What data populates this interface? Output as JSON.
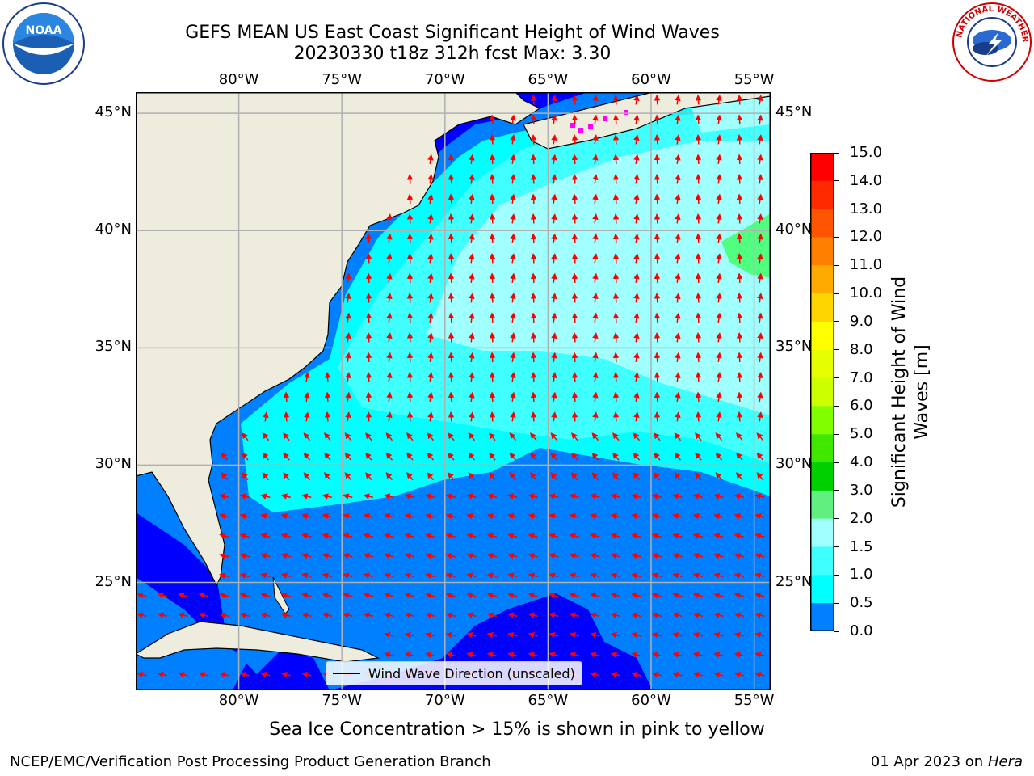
{
  "header": {
    "title_line1": "GEFS MEAN US East Coast Significant Height of Wind Waves",
    "title_line2": "20230330 t18z 312h fcst   Max: 3.30"
  },
  "logos": {
    "left": "NOAA",
    "right": "NATIONAL WEATHER SERVICE"
  },
  "map": {
    "lon_labels": [
      "80°W",
      "75°W",
      "70°W",
      "65°W",
      "60°W",
      "55°W"
    ],
    "lat_labels": [
      "45°N",
      "40°N",
      "35°N",
      "30°N",
      "25°N"
    ],
    "lon_range": [
      -85,
      -54.2
    ],
    "lat_range": [
      20.4,
      45.9
    ],
    "colors": {
      "land": "#eeecdc",
      "ocean_0_0_5": "#0000ff",
      "ocean_0_5_1": "#0080ff",
      "ocean_1_1_5": "#00ffff",
      "ocean_1_5_2": "#40ffff",
      "ocean_2_3": "#a0ffff",
      "ocean_3_4": "#50ff80",
      "arrow": "#ff0000",
      "grid": "#b0b0b0"
    }
  },
  "legend": {
    "label": "Wind Wave Direction (unscaled)"
  },
  "colorbar": {
    "title_line1": "Significant Height of Wind",
    "title_line2": "Waves [m]",
    "ticks": [
      "15.0",
      "14.0",
      "13.0",
      "12.0",
      "11.0",
      "10.0",
      "9.0",
      "8.0",
      "7.0",
      "6.0",
      "5.0",
      "4.0",
      "3.0",
      "2.0",
      "1.5",
      "1.0",
      "0.5",
      "0.0"
    ],
    "colors": [
      "#ff0000",
      "#ff2a00",
      "#ff5500",
      "#ff8000",
      "#ffaa00",
      "#ffd500",
      "#ffff00",
      "#e6ff00",
      "#ccff00",
      "#80ff00",
      "#40e800",
      "#00d000",
      "#60f080",
      "#a0ffff",
      "#40ffff",
      "#00ffff",
      "#0080ff",
      "#0000ff"
    ]
  },
  "subtitle": "Sea Ice Concentration > 15% is shown in pink to yellow",
  "footer": {
    "left": "NCEP/EMC/Verification Post Processing Product Generation Branch",
    "right_date": "01 Apr 2023 on ",
    "right_host": "Hera"
  }
}
